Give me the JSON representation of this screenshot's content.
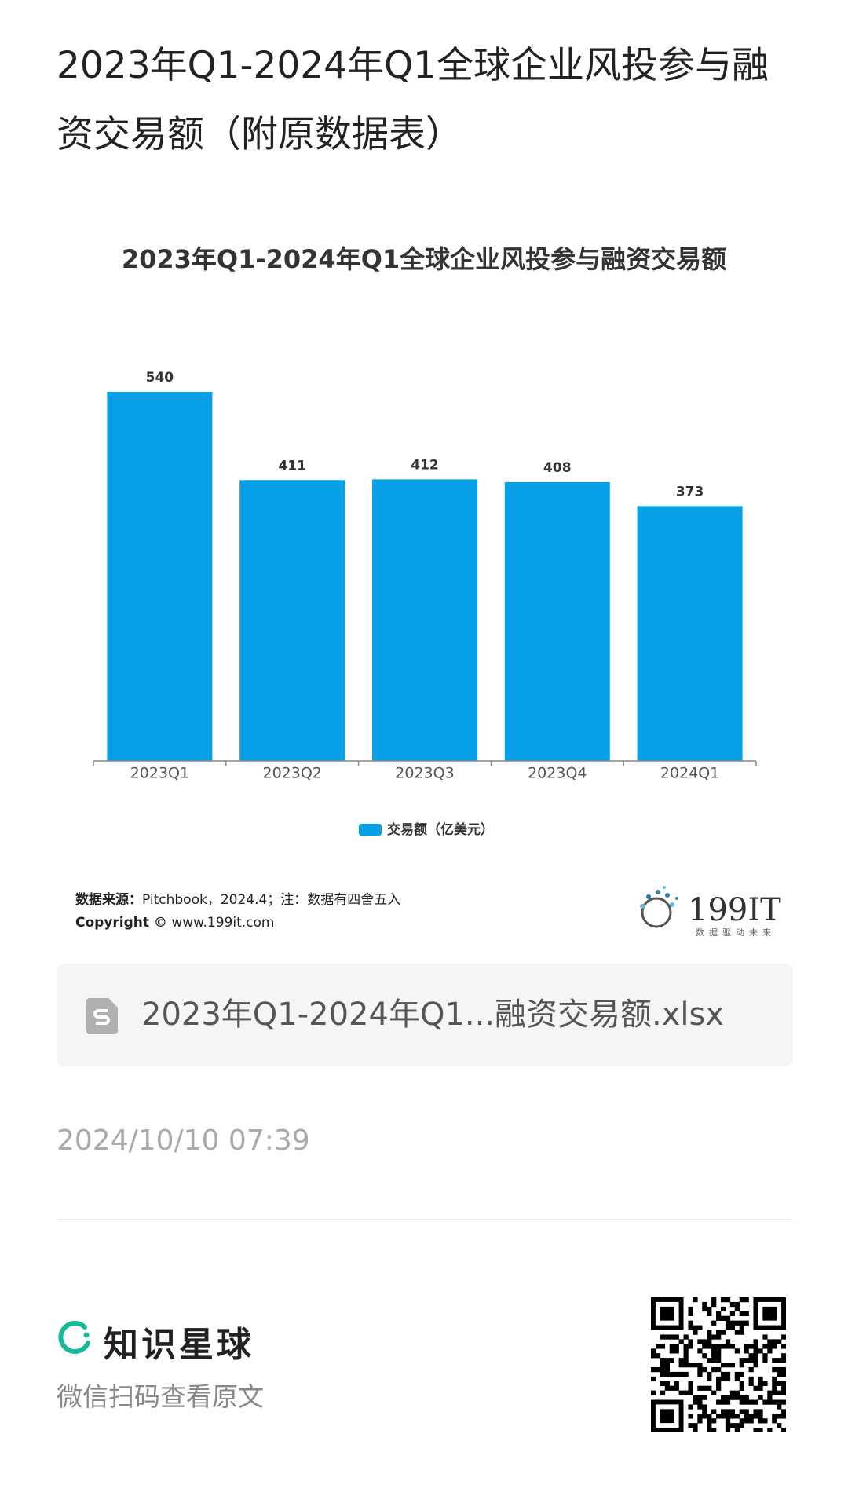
{
  "header": {
    "title": "2023年Q1-2024年Q1全球企业风投参与融资交易额（附原数据表）"
  },
  "chart_data": {
    "type": "bar",
    "title": "2023年Q1-2024年Q1全球企业风投参与融资交易额",
    "categories": [
      "2023Q1",
      "2023Q2",
      "2023Q3",
      "2023Q4",
      "2024Q1"
    ],
    "series": [
      {
        "name": "交易额（亿美元）",
        "color": "#07a0e6",
        "values": [
          540,
          411,
          412,
          408,
          373
        ]
      }
    ]
  },
  "source": {
    "label": "数据来源：",
    "text": "Pitchbook，2024.4；注：数据有四舍五入",
    "copyright_label": "Copyright ©",
    "copyright_text": "www.199it.com"
  },
  "logo": {
    "name": "199IT",
    "slogan": "数据驱动未来"
  },
  "file": {
    "name": "2023年Q1-2024年Q1...融资交易额.xlsx"
  },
  "timestamp": "2024/10/10 07:39",
  "footer": {
    "brand": "知识星球",
    "hint": "微信扫码查看原文"
  }
}
